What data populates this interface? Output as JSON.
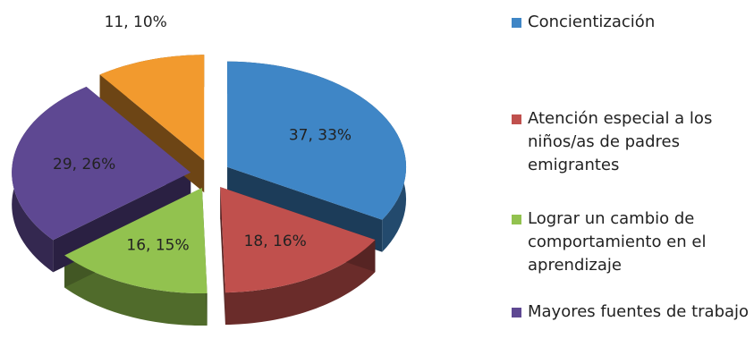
{
  "chart_data": {
    "type": "pie",
    "categories": [
      "Concientización",
      "Atención especial a los niños/as de padres emigrantes",
      "Lograr un cambio de comportamiento en el aprendizaje",
      "Mayores fuentes de trabajo",
      null
    ],
    "values": [
      37,
      18,
      16,
      29,
      11
    ],
    "value_labels": [
      "37, 33%",
      "18, 16%",
      "16, 15%",
      "29, 26%",
      "11, 10%"
    ],
    "colors": [
      "#3f86c6",
      "#c0504d",
      "#92c24f",
      "#5e4892",
      "#f29a2e"
    ]
  }
}
